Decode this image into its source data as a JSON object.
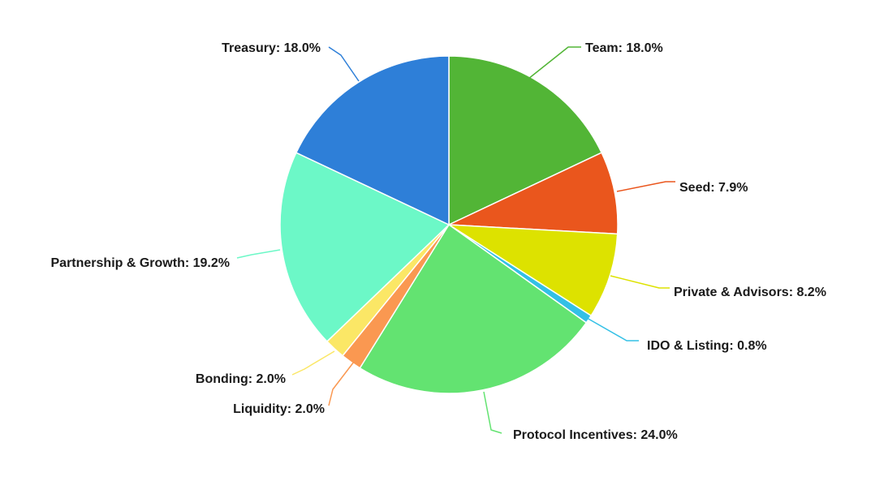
{
  "chart_data": {
    "type": "pie",
    "title": "",
    "slices": [
      {
        "label": "Team: 18.0%",
        "name": "Team",
        "value": 18.0,
        "color": "#52b536"
      },
      {
        "label": "Seed: 7.9%",
        "name": "Seed",
        "value": 7.9,
        "color": "#ea561d"
      },
      {
        "label": "Private & Advisors: 8.2%",
        "name": "Private & Advisors",
        "value": 8.2,
        "color": "#dde200"
      },
      {
        "label": "IDO & Listing: 0.8%",
        "name": "IDO & Listing",
        "value": 0.8,
        "color": "#33c0e6"
      },
      {
        "label": "Protocol Incentives: 24.0%",
        "name": "Protocol Incentives",
        "value": 24.0,
        "color": "#63e371"
      },
      {
        "label": "Liquidity: 2.0%",
        "name": "Liquidity",
        "value": 2.0,
        "color": "#fa9851"
      },
      {
        "label": "Bonding: 2.0%",
        "name": "Bonding",
        "value": 2.0,
        "color": "#fbe766"
      },
      {
        "label": "Partnership & Growth: 19.2%",
        "name": "Partnership & Growth",
        "value": 19.2,
        "color": "#6cf8c7"
      },
      {
        "label": "Treasury: 18.0%",
        "name": "Treasury",
        "value": 18.0,
        "color": "#2e7fd8"
      }
    ]
  }
}
